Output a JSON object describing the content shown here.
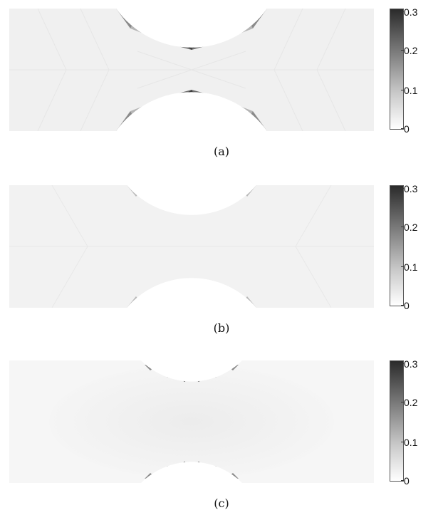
{
  "figure": {
    "panels": [
      {
        "caption": "(a)",
        "ticks": [
          "0.3",
          "0.2",
          "0.1",
          "0"
        ]
      },
      {
        "caption": "(b)",
        "ticks": [
          "0.3",
          "0.2",
          "0.1",
          "0"
        ]
      },
      {
        "caption": "(c)",
        "ticks": [
          "0.3",
          "0.2",
          "0.1",
          "0"
        ]
      }
    ],
    "colorbar": {
      "min": 0,
      "max": 0.3,
      "colormap": "grayscale (white to dark)"
    }
  }
}
